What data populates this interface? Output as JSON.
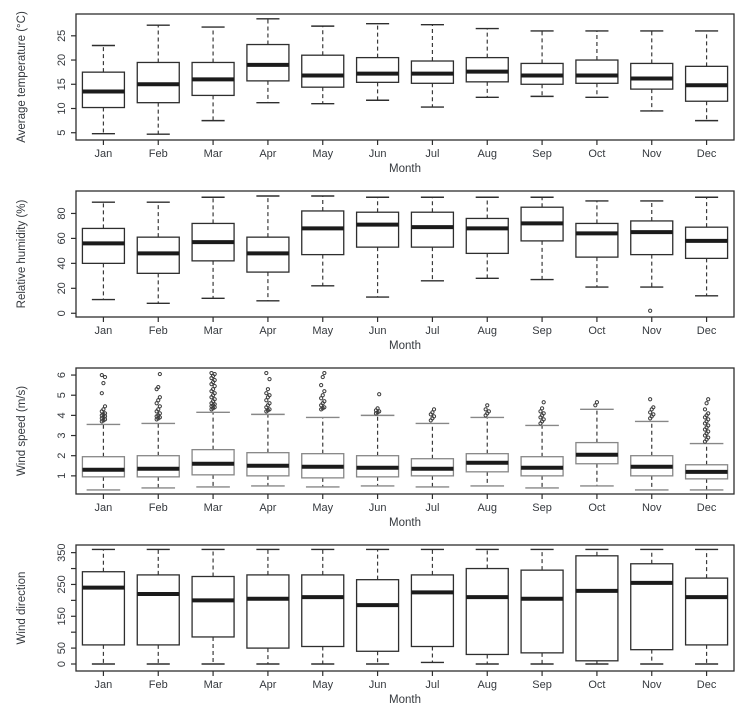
{
  "figure": {
    "title": "",
    "xlabel": "Month",
    "months": [
      "Jan",
      "Feb",
      "Mar",
      "Apr",
      "May",
      "Jun",
      "Jul",
      "Aug",
      "Sep",
      "Oct",
      "Nov",
      "Dec"
    ]
  },
  "style": {
    "background": "#ffffff",
    "frame_color": "#2e2e2e",
    "text_color": "#35393e",
    "median_color": "#1b1b1b",
    "whisker_color": "#3a3a3a",
    "box_fill": "#ffffff"
  },
  "chart_data": [
    {
      "type": "boxplot",
      "panel": "average-temperature",
      "ylabel": "Average temperature (°C)",
      "xlabel": "Month",
      "categories": [
        "Jan",
        "Feb",
        "Mar",
        "Apr",
        "May",
        "Jun",
        "Jul",
        "Aug",
        "Sep",
        "Oct",
        "Nov",
        "Dec"
      ],
      "ylim": [
        3.5,
        29.5
      ],
      "ytick_values": [
        5,
        10,
        15,
        20,
        25
      ],
      "ytick_labels": [
        "5",
        "10",
        "15",
        "20",
        "25"
      ],
      "box_stroke": "#2e2e2e",
      "cap_ratio": 0.55,
      "boxes": [
        {
          "low": 4.8,
          "q1": 10.2,
          "med": 13.5,
          "q3": 17.5,
          "high": 23.0,
          "outliers": []
        },
        {
          "low": 4.7,
          "q1": 11.2,
          "med": 15.0,
          "q3": 19.5,
          "high": 27.2,
          "outliers": []
        },
        {
          "low": 7.5,
          "q1": 12.7,
          "med": 16.0,
          "q3": 19.5,
          "high": 26.8,
          "outliers": []
        },
        {
          "low": 11.2,
          "q1": 15.7,
          "med": 19.0,
          "q3": 23.2,
          "high": 28.5,
          "outliers": []
        },
        {
          "low": 11.0,
          "q1": 14.4,
          "med": 16.8,
          "q3": 21.0,
          "high": 27.0,
          "outliers": []
        },
        {
          "low": 11.7,
          "q1": 15.4,
          "med": 17.2,
          "q3": 20.5,
          "high": 27.5,
          "outliers": []
        },
        {
          "low": 10.3,
          "q1": 15.2,
          "med": 17.2,
          "q3": 19.8,
          "high": 27.3,
          "outliers": []
        },
        {
          "low": 12.3,
          "q1": 15.5,
          "med": 17.6,
          "q3": 20.5,
          "high": 26.5,
          "outliers": []
        },
        {
          "low": 12.5,
          "q1": 15.0,
          "med": 16.8,
          "q3": 19.3,
          "high": 26.0,
          "outliers": []
        },
        {
          "low": 12.3,
          "q1": 15.2,
          "med": 16.8,
          "q3": 20.0,
          "high": 26.0,
          "outliers": []
        },
        {
          "low": 9.5,
          "q1": 14.0,
          "med": 16.2,
          "q3": 19.3,
          "high": 26.0,
          "outliers": []
        },
        {
          "low": 7.5,
          "q1": 11.5,
          "med": 14.8,
          "q3": 18.7,
          "high": 26.0,
          "outliers": []
        }
      ]
    },
    {
      "type": "boxplot",
      "panel": "relative-humidity",
      "ylabel": "Relative humidity (%)",
      "xlabel": "Month",
      "categories": [
        "Jan",
        "Feb",
        "Mar",
        "Apr",
        "May",
        "Jun",
        "Jul",
        "Aug",
        "Sep",
        "Oct",
        "Nov",
        "Dec"
      ],
      "ylim": [
        -3,
        98
      ],
      "ytick_values": [
        0,
        20,
        40,
        60,
        80
      ],
      "ytick_labels": [
        "0",
        "20",
        "40",
        "60",
        "80"
      ],
      "box_stroke": "#2e2e2e",
      "cap_ratio": 0.55,
      "boxes": [
        {
          "low": 11,
          "q1": 40,
          "med": 56,
          "q3": 68,
          "high": 89,
          "outliers": []
        },
        {
          "low": 8,
          "q1": 32,
          "med": 48,
          "q3": 61,
          "high": 89,
          "outliers": []
        },
        {
          "low": 12,
          "q1": 42,
          "med": 57,
          "q3": 72,
          "high": 93,
          "outliers": []
        },
        {
          "low": 10,
          "q1": 33,
          "med": 48,
          "q3": 61,
          "high": 94,
          "outliers": []
        },
        {
          "low": 22,
          "q1": 47,
          "med": 68,
          "q3": 82,
          "high": 94,
          "outliers": []
        },
        {
          "low": 13,
          "q1": 53,
          "med": 71,
          "q3": 81,
          "high": 93,
          "outliers": []
        },
        {
          "low": 26,
          "q1": 53,
          "med": 69,
          "q3": 81,
          "high": 93,
          "outliers": []
        },
        {
          "low": 28,
          "q1": 48,
          "med": 68,
          "q3": 76,
          "high": 93,
          "outliers": []
        },
        {
          "low": 27,
          "q1": 58,
          "med": 72,
          "q3": 85,
          "high": 93,
          "outliers": []
        },
        {
          "low": 21,
          "q1": 45,
          "med": 64,
          "q3": 72,
          "high": 90,
          "outliers": []
        },
        {
          "low": 21,
          "q1": 47,
          "med": 65,
          "q3": 74,
          "high": 90,
          "outliers": [
            2
          ]
        },
        {
          "low": 14,
          "q1": 44,
          "med": 58,
          "q3": 69,
          "high": 93,
          "outliers": []
        }
      ]
    },
    {
      "type": "boxplot",
      "panel": "wind-speed",
      "ylabel": "Wind speed (m/s)",
      "xlabel": "Month",
      "categories": [
        "Jan",
        "Feb",
        "Mar",
        "Apr",
        "May",
        "Jun",
        "Jul",
        "Aug",
        "Sep",
        "Oct",
        "Nov",
        "Dec"
      ],
      "ylim": [
        0.1,
        6.35
      ],
      "ytick_values": [
        1,
        2,
        3,
        4,
        5,
        6
      ],
      "ytick_labels": [
        "1",
        "2",
        "3",
        "4",
        "5",
        "6"
      ],
      "box_stroke": "#878787",
      "cap_ratio": 0.8,
      "boxes": [
        {
          "low": 0.3,
          "q1": 0.95,
          "med": 1.3,
          "q3": 1.95,
          "high": 3.55,
          "outliers": [
            3.7,
            3.75,
            3.8,
            3.85,
            3.9,
            3.95,
            4.0,
            4.05,
            4.1,
            4.2,
            4.3,
            4.45,
            5.1,
            5.6,
            5.9,
            6.0
          ]
        },
        {
          "low": 0.4,
          "q1": 0.95,
          "med": 1.35,
          "q3": 2.0,
          "high": 3.6,
          "outliers": [
            3.8,
            3.85,
            3.9,
            3.95,
            4.0,
            4.1,
            4.2,
            4.3,
            4.45,
            4.6,
            4.75,
            4.9,
            5.3,
            5.4,
            6.05
          ]
        },
        {
          "low": 0.45,
          "q1": 1.05,
          "med": 1.6,
          "q3": 2.3,
          "high": 4.15,
          "outliers": [
            4.3,
            4.35,
            4.4,
            4.45,
            4.5,
            4.55,
            4.6,
            4.7,
            4.8,
            4.9,
            5.0,
            5.1,
            5.2,
            5.3,
            5.45,
            5.55,
            5.65,
            5.75,
            5.85,
            5.95,
            6.05,
            6.1
          ]
        },
        {
          "low": 0.5,
          "q1": 1.0,
          "med": 1.5,
          "q3": 2.15,
          "high": 4.05,
          "outliers": [
            4.2,
            4.25,
            4.3,
            4.4,
            4.5,
            4.6,
            4.75,
            4.9,
            5.0,
            5.1,
            5.3,
            5.8,
            6.1
          ]
        },
        {
          "low": 0.45,
          "q1": 0.9,
          "med": 1.45,
          "q3": 2.1,
          "high": 3.9,
          "outliers": [
            4.3,
            4.35,
            4.4,
            4.5,
            4.6,
            4.7,
            4.85,
            5.0,
            5.2,
            5.5,
            5.9,
            6.1
          ]
        },
        {
          "low": 0.5,
          "q1": 0.95,
          "med": 1.4,
          "q3": 2.0,
          "high": 4.0,
          "outliers": [
            4.1,
            4.15,
            4.2,
            4.25,
            4.35,
            5.05
          ]
        },
        {
          "low": 0.45,
          "q1": 1.0,
          "med": 1.35,
          "q3": 1.85,
          "high": 3.6,
          "outliers": [
            3.75,
            3.85,
            3.95,
            4.05,
            4.15,
            4.3
          ]
        },
        {
          "low": 0.5,
          "q1": 1.2,
          "med": 1.65,
          "q3": 2.1,
          "high": 3.9,
          "outliers": [
            4.0,
            4.1,
            4.2,
            4.3,
            4.5
          ]
        },
        {
          "low": 0.4,
          "q1": 1.0,
          "med": 1.4,
          "q3": 1.95,
          "high": 3.5,
          "outliers": [
            3.6,
            3.7,
            3.8,
            3.9,
            4.0,
            4.1,
            4.2,
            4.35,
            4.65
          ]
        },
        {
          "low": 0.5,
          "q1": 1.6,
          "med": 2.05,
          "q3": 2.65,
          "high": 4.3,
          "outliers": [
            4.5,
            4.65
          ]
        },
        {
          "low": 0.3,
          "q1": 1.0,
          "med": 1.45,
          "q3": 2.0,
          "high": 3.7,
          "outliers": [
            3.85,
            3.95,
            4.05,
            4.15,
            4.3,
            4.4,
            4.8
          ]
        },
        {
          "low": 0.3,
          "q1": 0.85,
          "med": 1.2,
          "q3": 1.55,
          "high": 2.6,
          "outliers": [
            2.7,
            2.8,
            2.9,
            3.0,
            3.1,
            3.2,
            3.3,
            3.4,
            3.5,
            3.6,
            3.7,
            3.8,
            3.9,
            4.0,
            4.1,
            4.3,
            4.6,
            4.8
          ]
        }
      ]
    },
    {
      "type": "boxplot",
      "panel": "wind-direction",
      "ylabel": "Wind direction",
      "xlabel": "Month",
      "categories": [
        "Jan",
        "Feb",
        "Mar",
        "Apr",
        "May",
        "Jun",
        "Jul",
        "Aug",
        "Sep",
        "Oct",
        "Nov",
        "Dec"
      ],
      "ylim": [
        -22,
        374
      ],
      "ytick_values": [
        0,
        50,
        100,
        150,
        200,
        250,
        300,
        350
      ],
      "ytick_labels": [
        "0",
        "50",
        "",
        "150",
        "",
        "250",
        "",
        "350"
      ],
      "box_stroke": "#2e2e2e",
      "cap_ratio": 0.55,
      "boxes": [
        {
          "low": 0,
          "q1": 60,
          "med": 240,
          "q3": 290,
          "high": 360,
          "outliers": []
        },
        {
          "low": 0,
          "q1": 60,
          "med": 220,
          "q3": 280,
          "high": 360,
          "outliers": []
        },
        {
          "low": 0,
          "q1": 85,
          "med": 200,
          "q3": 275,
          "high": 360,
          "outliers": []
        },
        {
          "low": 0,
          "q1": 50,
          "med": 205,
          "q3": 280,
          "high": 360,
          "outliers": []
        },
        {
          "low": 0,
          "q1": 55,
          "med": 210,
          "q3": 280,
          "high": 360,
          "outliers": []
        },
        {
          "low": 0,
          "q1": 40,
          "med": 185,
          "q3": 265,
          "high": 360,
          "outliers": []
        },
        {
          "low": 5,
          "q1": 55,
          "med": 225,
          "q3": 280,
          "high": 360,
          "outliers": []
        },
        {
          "low": 0,
          "q1": 30,
          "med": 210,
          "q3": 300,
          "high": 360,
          "outliers": []
        },
        {
          "low": 0,
          "q1": 35,
          "med": 205,
          "q3": 295,
          "high": 360,
          "outliers": []
        },
        {
          "low": 0,
          "q1": 10,
          "med": 230,
          "q3": 340,
          "high": 360,
          "outliers": []
        },
        {
          "low": 0,
          "q1": 45,
          "med": 255,
          "q3": 315,
          "high": 360,
          "outliers": []
        },
        {
          "low": 0,
          "q1": 60,
          "med": 210,
          "q3": 270,
          "high": 360,
          "outliers": []
        }
      ]
    }
  ]
}
